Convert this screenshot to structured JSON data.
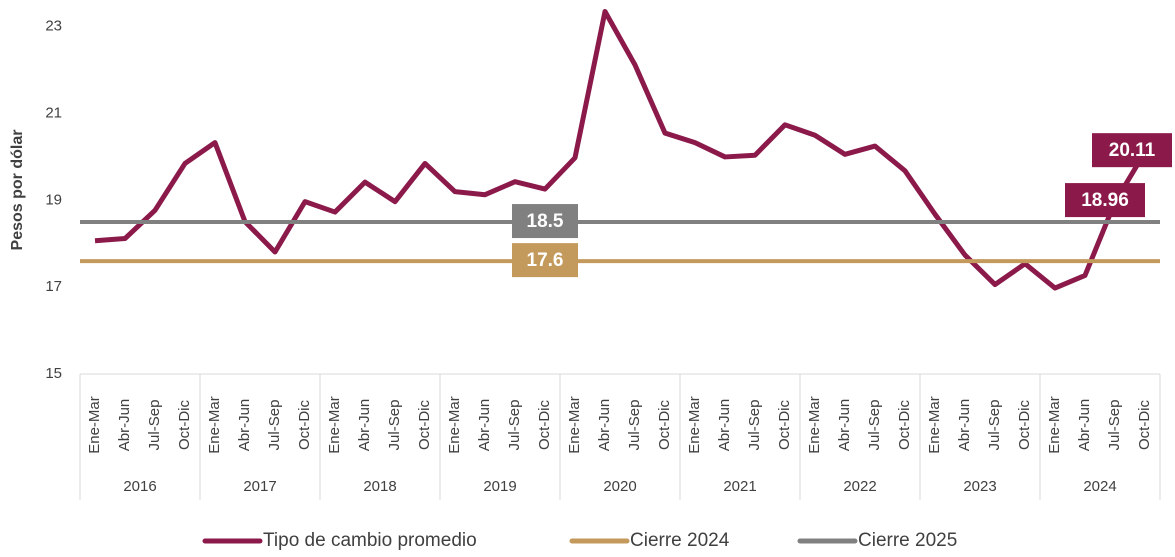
{
  "chart_data": {
    "type": "line",
    "y_label": "Pesos por dólar",
    "categories": [
      "Ene-Mar",
      "Abr-Jun",
      "Jul-Sep",
      "Oct-Dic",
      "Ene-Mar",
      "Abr-Jun",
      "Jul-Sep",
      "Oct-Dic",
      "Ene-Mar",
      "Abr-Jun",
      "Jul-Sep",
      "Oct-Dic",
      "Ene-Mar",
      "Abr-Jun",
      "Jul-Sep",
      "Oct-Dic",
      "Ene-Mar",
      "Abr-Jun",
      "Jul-Sep",
      "Oct-Dic",
      "Ene-Mar",
      "Abr-Jun",
      "Jul-Sep",
      "Oct-Dic",
      "Ene-Mar",
      "Abr-Jun",
      "Jul-Sep",
      "Oct-Dic",
      "Ene-Mar",
      "Abr-Jun",
      "Jul-Sep",
      "Oct-Dic",
      "Ene-Mar",
      "Abr-Jun",
      "Jul-Sep",
      "Oct-Dic"
    ],
    "groups": [
      "2016",
      "2017",
      "2018",
      "2019",
      "2020",
      "2021",
      "2022",
      "2023",
      "2024"
    ],
    "series": [
      {
        "name": "Tipo de cambio promedio",
        "color": "#8b1a4b",
        "values": [
          18.07,
          18.12,
          18.77,
          19.85,
          20.33,
          18.51,
          17.81,
          18.97,
          18.73,
          19.42,
          18.97,
          19.85,
          19.2,
          19.13,
          19.43,
          19.26,
          19.98,
          23.35,
          22.12,
          20.55,
          20.33,
          20.0,
          20.04,
          20.74,
          20.5,
          20.06,
          20.25,
          19.68,
          18.68,
          17.74,
          17.06,
          17.54,
          16.98,
          17.27,
          18.96,
          20.11
        ],
        "label_indices": [
          34,
          35
        ]
      },
      {
        "name": "Cierre 2024",
        "color": "#c49a5c",
        "value": 17.6
      },
      {
        "name": "Cierre 2025",
        "color": "#808080",
        "value": 18.5
      }
    ],
    "ylim": [
      15,
      23.5
    ],
    "yticks": [
      15,
      17,
      19,
      21,
      23
    ]
  }
}
